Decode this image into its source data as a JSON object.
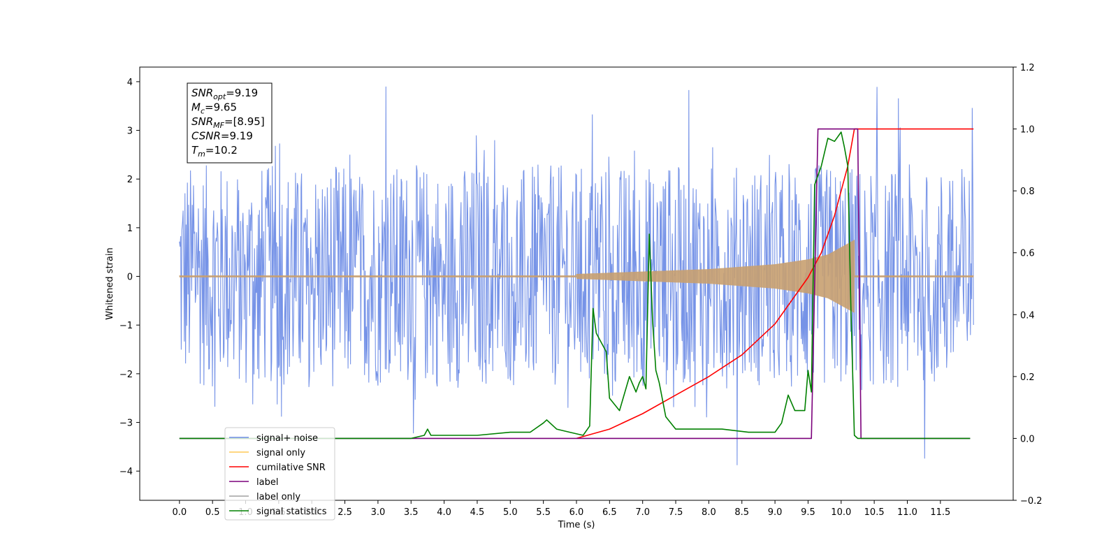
{
  "chart_data": {
    "type": "line",
    "xlabel": "Time (s)",
    "ylabel": "Whitened strain",
    "xlim": [
      -0.6,
      12.6
    ],
    "ylim": [
      -4.6,
      4.3
    ],
    "y2lim": [
      -0.2,
      1.2
    ],
    "grid": false,
    "legend_placement": "lower-left",
    "x_ticks": [
      0.0,
      0.5,
      1.0,
      1.5,
      2.0,
      2.5,
      3.0,
      3.5,
      4.0,
      4.5,
      5.0,
      5.5,
      6.0,
      6.5,
      7.0,
      7.5,
      8.0,
      8.5,
      9.0,
      9.5,
      10.0,
      10.5,
      11.0,
      11.5
    ],
    "x_tick_labels": [
      "0.0",
      "0.5",
      "1.0",
      "1.5",
      "2.0",
      "2.5",
      "3.0",
      "3.5",
      "4.0",
      "4.5",
      "5.0",
      "5.5",
      "6.0",
      "6.5",
      "7.0",
      "7.5",
      "8.0",
      "8.5",
      "9.0",
      "9.5",
      "10.0",
      "10.5",
      "11.0",
      "11.5"
    ],
    "y_ticks": [
      -4,
      -3,
      -2,
      -1,
      0,
      1,
      2,
      3,
      4
    ],
    "y_tick_labels": [
      "−4",
      "−3",
      "−2",
      "−1",
      "0",
      "1",
      "2",
      "3",
      "4"
    ],
    "y2_ticks": [
      -0.2,
      0.0,
      0.2,
      0.4,
      0.6,
      0.8,
      1.0,
      1.2
    ],
    "y2_tick_labels": [
      "−0.2",
      "0.0",
      "0.2",
      "0.4",
      "0.6",
      "0.8",
      "1.0",
      "1.2"
    ],
    "annotation": {
      "lines": [
        {
          "base": "SNR",
          "sub": "opt",
          "rest": "=9.19"
        },
        {
          "base": "M",
          "sub": "c",
          "rest": "=9.65"
        },
        {
          "base": "SNR",
          "sub": "MF",
          "rest": "=[8.95]"
        },
        {
          "base": "CSNR",
          "sub": "",
          "rest": "=9.19"
        },
        {
          "base": "T",
          "sub": "m",
          "rest": "=10.2"
        }
      ]
    },
    "legend": [
      {
        "label": "signal+ noise",
        "color": "#6f8de6"
      },
      {
        "label": "signal only",
        "color": "#ffc857"
      },
      {
        "label": "cumilative SNR",
        "color": "#ff0000"
      },
      {
        "label": "label",
        "color": "#7b007b"
      },
      {
        "label": "label only",
        "color": "#a0a0a0"
      },
      {
        "label": "signal statistics",
        "color": "#008000"
      }
    ],
    "series": [
      {
        "name": "signal+ noise",
        "axis": "left",
        "color": "#6f8de6",
        "t_range": [
          0.0,
          12.0
        ],
        "envelope_approx": {
          "typical_half_width": 2.3,
          "extreme_peaks_up": 3.9,
          "extreme_peaks_down": -4.1
        }
      },
      {
        "name": "signal only",
        "axis": "left",
        "color": "#c8a070",
        "t_range": [
          0.0,
          12.0
        ],
        "chirp_start": 6.0,
        "merger_time": 10.2,
        "envelope": {
          "x": [
            6.0,
            7.0,
            8.0,
            9.0,
            9.5,
            9.8,
            10.0,
            10.2
          ],
          "y": [
            0.05,
            0.1,
            0.15,
            0.25,
            0.35,
            0.45,
            0.6,
            0.75
          ]
        }
      },
      {
        "name": "cumilative SNR",
        "axis": "right",
        "color": "#ff0000",
        "x": [
          6.0,
          6.5,
          7.0,
          7.5,
          8.0,
          8.5,
          9.0,
          9.5,
          9.7,
          9.9,
          10.1,
          10.2,
          10.5,
          11.0,
          11.5,
          12.0
        ],
        "y": [
          0.0,
          0.03,
          0.08,
          0.14,
          0.2,
          0.27,
          0.37,
          0.52,
          0.6,
          0.72,
          0.88,
          1.0,
          1.0,
          1.0,
          1.0,
          1.0
        ]
      },
      {
        "name": "label",
        "axis": "right",
        "color": "#7b007b",
        "x": [
          0.0,
          9.55,
          9.65,
          10.25,
          10.3,
          11.95
        ],
        "y": [
          0.0,
          0.0,
          1.0,
          1.0,
          0.0,
          0.0
        ]
      },
      {
        "name": "signal statistics",
        "axis": "right",
        "color": "#008000",
        "x": [
          0.0,
          3.5,
          3.7,
          3.75,
          3.8,
          4.0,
          4.5,
          5.0,
          5.3,
          5.5,
          5.55,
          5.7,
          5.9,
          6.1,
          6.2,
          6.25,
          6.3,
          6.35,
          6.45,
          6.5,
          6.65,
          6.8,
          6.9,
          6.95,
          7.0,
          7.05,
          7.1,
          7.15,
          7.2,
          7.25,
          7.35,
          7.5,
          7.8,
          8.2,
          8.6,
          9.0,
          9.1,
          9.2,
          9.3,
          9.4,
          9.45,
          9.5,
          9.55,
          9.6,
          9.7,
          9.8,
          9.9,
          10.0,
          10.05,
          10.1,
          10.15,
          10.2,
          10.25,
          10.35,
          10.5,
          11.0,
          11.5,
          11.95
        ],
        "y": [
          0.0,
          0.0,
          0.01,
          0.03,
          0.01,
          0.01,
          0.01,
          0.02,
          0.02,
          0.05,
          0.06,
          0.03,
          0.02,
          0.01,
          0.04,
          0.42,
          0.34,
          0.32,
          0.28,
          0.13,
          0.09,
          0.2,
          0.15,
          0.18,
          0.2,
          0.16,
          0.66,
          0.38,
          0.22,
          0.18,
          0.07,
          0.03,
          0.03,
          0.03,
          0.02,
          0.02,
          0.05,
          0.14,
          0.09,
          0.09,
          0.09,
          0.22,
          0.15,
          0.82,
          0.88,
          0.97,
          0.96,
          0.99,
          0.94,
          0.88,
          0.4,
          0.01,
          0.0,
          0.0,
          0.0,
          0.0,
          0.0,
          0.0
        ]
      }
    ]
  }
}
